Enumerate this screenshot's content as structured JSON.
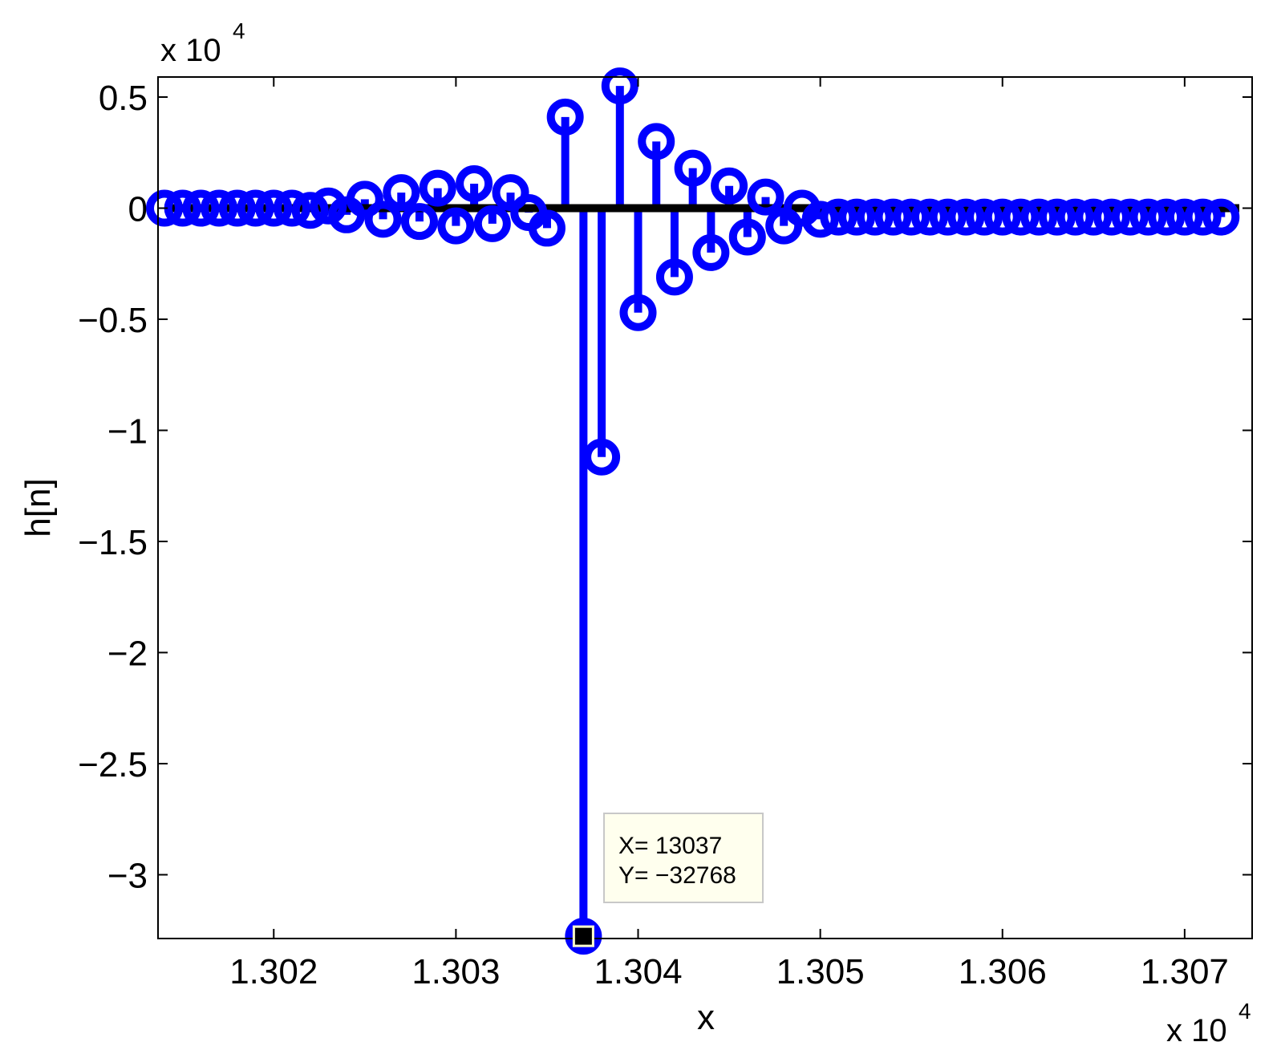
{
  "chart_data": {
    "type": "stem",
    "xlabel": "x",
    "ylabel": "h[n]",
    "x_multiplier": "x 10",
    "x_multiplier_exp": "4",
    "y_multiplier": "x 10",
    "y_multiplier_exp": "4",
    "xlim": [
      13014,
      13073
    ],
    "ylim": [
      -33000,
      6000
    ],
    "x_ticks": [
      13020,
      13030,
      13040,
      13050,
      13060,
      13070
    ],
    "x_tick_labels": [
      "1.302",
      "1.303",
      "1.304",
      "1.305",
      "1.306",
      "1.307"
    ],
    "y_ticks": [
      5000,
      0,
      -5000,
      -10000,
      -15000,
      -20000,
      -25000,
      -30000
    ],
    "y_tick_labels": [
      "0.5",
      "0",
      "−0.5",
      "−1",
      "−1.5",
      "−2",
      "−2.5",
      "−3"
    ],
    "grid": false,
    "series": [
      {
        "color": "#0000ff",
        "x": [
          13014,
          13015,
          13016,
          13017,
          13018,
          13019,
          13020,
          13021,
          13022,
          13023,
          13024,
          13025,
          13026,
          13027,
          13028,
          13029,
          13030,
          13031,
          13032,
          13033,
          13034,
          13035,
          13036,
          13037,
          13038,
          13039,
          13040,
          13041,
          13042,
          13043,
          13044,
          13045,
          13046,
          13047,
          13048,
          13049,
          13050,
          13051,
          13052,
          13053,
          13054,
          13055,
          13056,
          13057,
          13058,
          13059,
          13060,
          13061,
          13062,
          13063,
          13064,
          13065,
          13066,
          13067,
          13068,
          13069,
          13070,
          13071,
          13072
        ],
        "y": [
          0,
          0,
          0,
          0,
          0,
          0,
          0,
          0,
          -100,
          100,
          -300,
          400,
          -500,
          700,
          -600,
          900,
          -800,
          1100,
          -700,
          700,
          -200,
          -900,
          4100,
          -32768,
          -11200,
          5500,
          -4700,
          3000,
          -3100,
          1800,
          -2000,
          1000,
          -1300,
          500,
          -800,
          0,
          -500,
          -400,
          -400,
          -400,
          -400,
          -400,
          -400,
          -400,
          -400,
          -400,
          -400,
          -400,
          -400,
          -400,
          -400,
          -400,
          -400,
          -400,
          -400,
          -400,
          -400,
          -400,
          -400
        ]
      }
    ],
    "baseline": {
      "y": 0,
      "color": "#000000"
    },
    "datatip": {
      "x_text": "X= 13037",
      "y_text": "Y= −32768",
      "x": 13037,
      "y": -32768
    }
  }
}
